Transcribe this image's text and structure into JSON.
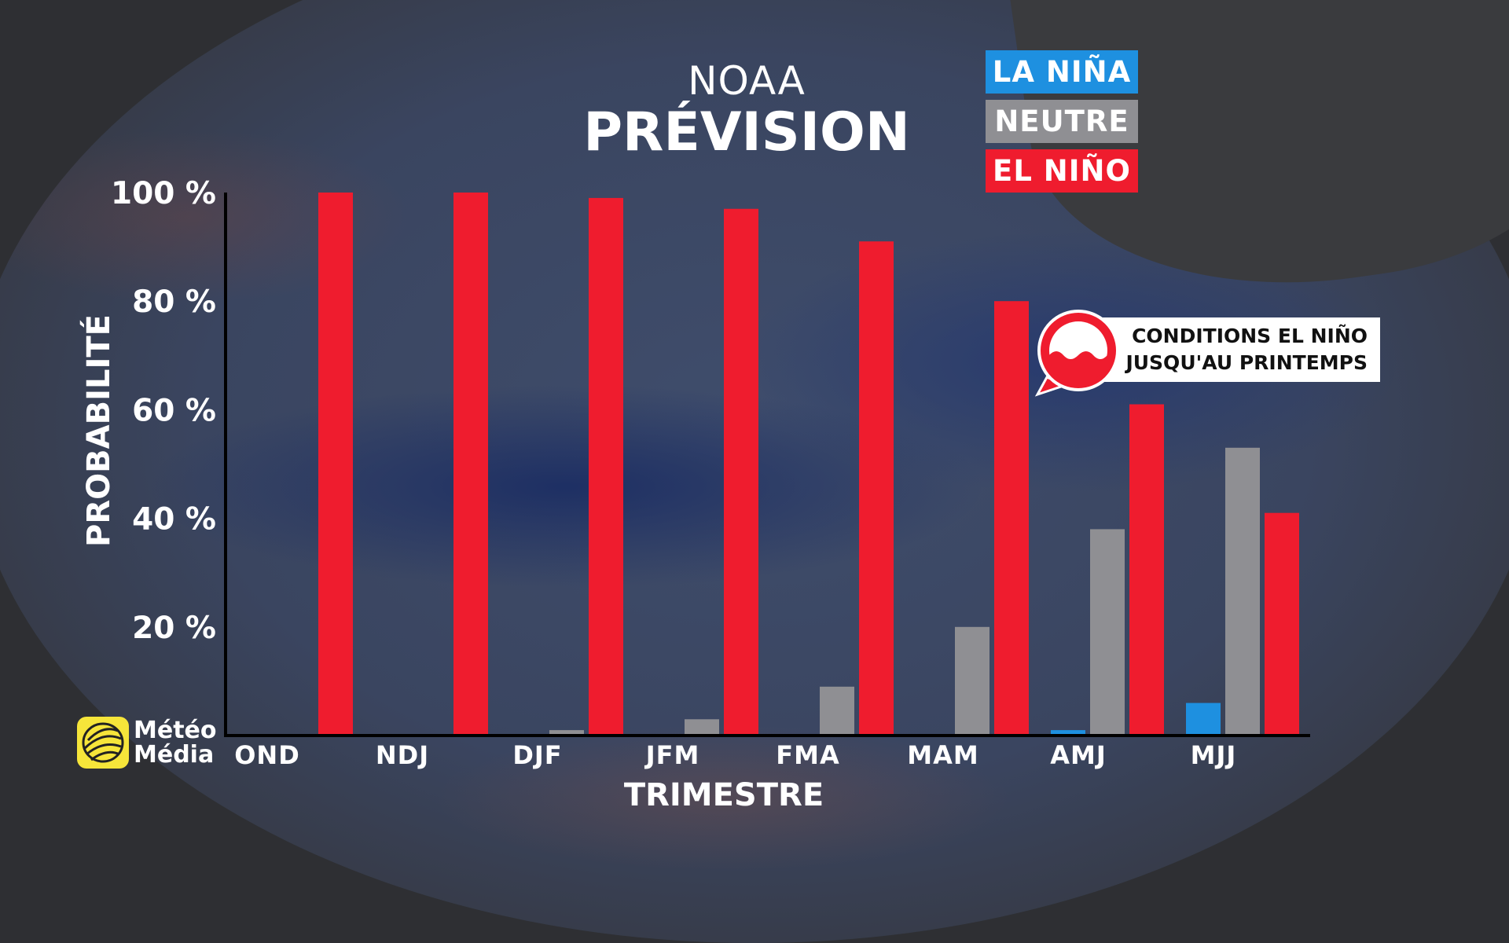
{
  "header": {
    "source": "NOAA",
    "title": "PRÉVISION"
  },
  "legend": [
    {
      "label": "LA NIÑA",
      "color": "#1e90e0"
    },
    {
      "label": "NEUTRE",
      "color": "#8f8f93"
    },
    {
      "label": "EL NIÑO",
      "color": "#ef1c2e"
    }
  ],
  "callout": {
    "line1": "CONDITIONS EL NIÑO",
    "line2": "JUSQU'AU PRINTEMPS",
    "icon": "el-nino-wave-icon"
  },
  "brand": {
    "line1": "Météo",
    "line2": "Média",
    "icon": "meteomedia-globe-icon"
  },
  "chart_data": {
    "type": "bar",
    "xlabel": "TRIMESTRE",
    "ylabel": "PROBABILITÉ",
    "ylim": [
      0,
      100
    ],
    "ytick_labels": [
      "20 %",
      "40 %",
      "60 %",
      "80 %",
      "100 %"
    ],
    "categories": [
      "OND",
      "NDJ",
      "DJF",
      "JFM",
      "FMA",
      "MAM",
      "AMJ",
      "MJJ"
    ],
    "series": [
      {
        "name": "LA NIÑA",
        "color": "#1e90e0",
        "values": [
          0,
          0,
          0,
          0,
          0,
          0,
          1,
          6
        ]
      },
      {
        "name": "NEUTRE",
        "color": "#8f8f93",
        "values": [
          0,
          0,
          1,
          3,
          9,
          20,
          38,
          53
        ]
      },
      {
        "name": "EL NIÑO",
        "color": "#ef1c2e",
        "values": [
          100,
          100,
          99,
          97,
          91,
          80,
          61,
          41
        ]
      }
    ],
    "grid": false,
    "legend_position": "top-right"
  }
}
